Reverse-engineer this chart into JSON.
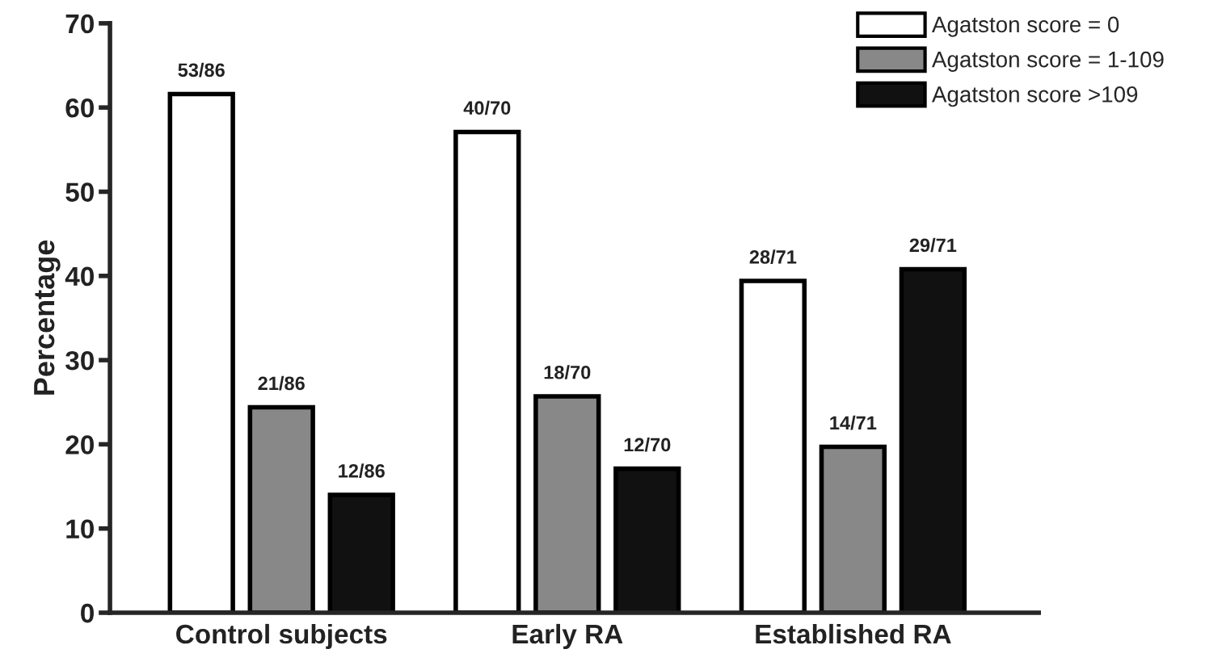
{
  "chart_data": {
    "type": "bar",
    "ylabel": "Percentage",
    "categories": [
      "Control subjects",
      "Early RA",
      "Established RA"
    ],
    "series": [
      {
        "name": "Agatston score = 0",
        "color": "#ffffff",
        "values": [
          61.6,
          57.1,
          39.4
        ],
        "value_labels": [
          "53/86",
          "40/70",
          "28/71"
        ]
      },
      {
        "name": "Agatston score = 1-109",
        "color": "#888888",
        "values": [
          24.4,
          25.7,
          19.7
        ],
        "value_labels": [
          "21/86",
          "18/70",
          "14/71"
        ]
      },
      {
        "name": "Agatston score >109",
        "color": "#111111",
        "values": [
          14.0,
          17.1,
          40.8
        ],
        "value_labels": [
          "12/86",
          "12/70",
          "29/71"
        ]
      }
    ],
    "ylim": [
      0,
      70
    ],
    "yticks": [
      0,
      10,
      20,
      30,
      40,
      50,
      60,
      70
    ],
    "grid": false,
    "legend": "top right"
  }
}
